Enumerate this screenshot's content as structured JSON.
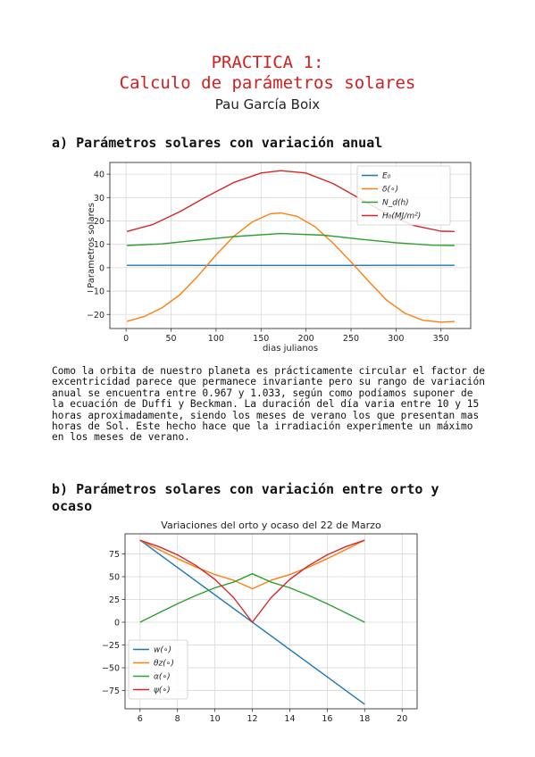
{
  "header": {
    "title_line1": "PRACTICA 1:",
    "title_line2": "Calculo de parámetros solares",
    "author": "Pau García Boix"
  },
  "sections": {
    "a_heading": "a) Parámetros solares con variación anual",
    "a_paragraph": "Como la orbita de nuestro planeta es prácticamente circular el factor de excentricidad parece que permanece invariante pero su rango de variación anual se encuentra entre 0.967 y 1.033, según como podíamos suponer de la ecuación de Duffi y Beckman. La duración del día varia entre 10 y 15 horas aproximadamente, siendo los meses de verano los que presentan mas horas de Sol. Este hecho hace que la irradiación experimente un máximo en los meses de verano.",
    "b_heading": "b) Parámetros solares con variación entre orto y ocaso"
  },
  "colors": {
    "title": "#d11f1f",
    "blue": "#1f77b4",
    "orange": "#ff7f0e",
    "green": "#2ca02c",
    "red": "#d62728"
  },
  "chart_data": [
    {
      "type": "line",
      "title": "",
      "xlabel": "dias julianos",
      "ylabel": "Parametros solares",
      "xlim": [
        -18,
        383
      ],
      "ylim": [
        -26,
        45
      ],
      "xticks": [
        "0",
        "50",
        "100",
        "150",
        "200",
        "250",
        "300",
        "350"
      ],
      "yticks": [
        "−20",
        "−10",
        "0",
        "10",
        "20",
        "30",
        "40"
      ],
      "grid": true,
      "legend": "top-right",
      "series": [
        {
          "name": "E₀",
          "color": "#1f77b4",
          "x": [
            1,
            50,
            100,
            172,
            250,
            300,
            365
          ],
          "y": [
            1.03,
            1.02,
            1.0,
            0.97,
            0.99,
            1.01,
            1.03
          ]
        },
        {
          "name": "δ(∘)",
          "color": "#ff7f0e",
          "x": [
            1,
            20,
            40,
            60,
            80,
            100,
            120,
            140,
            160,
            172,
            190,
            210,
            230,
            250,
            270,
            290,
            310,
            330,
            350,
            365
          ],
          "y": [
            -23,
            -20.9,
            -17.2,
            -11.5,
            -3.5,
            5.5,
            13.5,
            19.5,
            23.0,
            23.45,
            22.0,
            17.5,
            10.5,
            2.5,
            -6.0,
            -14.0,
            -19.5,
            -22.5,
            -23.3,
            -23.0
          ]
        },
        {
          "name": "N_d(h)",
          "color": "#2ca02c",
          "x": [
            1,
            40,
            80,
            120,
            172,
            220,
            260,
            300,
            340,
            365
          ],
          "y": [
            9.5,
            10.2,
            11.8,
            13.3,
            14.6,
            13.9,
            12.2,
            10.7,
            9.6,
            9.5
          ]
        },
        {
          "name": "H₀(MJ/m²)",
          "color": "#d62728",
          "x": [
            1,
            30,
            60,
            90,
            120,
            150,
            172,
            200,
            230,
            260,
            290,
            320,
            350,
            365
          ],
          "y": [
            15.5,
            18.5,
            24.0,
            30.5,
            36.5,
            40.5,
            41.5,
            40.5,
            36.0,
            29.5,
            23.0,
            18.0,
            15.6,
            15.5
          ]
        }
      ]
    },
    {
      "type": "line",
      "title": "Variaciones del orto y ocaso del 22 de Marzo",
      "xlabel": "",
      "ylabel": "",
      "xlim": [
        5.2,
        20.8
      ],
      "ylim": [
        -95,
        97
      ],
      "xticks": [
        "6",
        "8",
        "10",
        "12",
        "14",
        "16",
        "18",
        "20"
      ],
      "yticks": [
        "75",
        "50",
        "25",
        "0",
        "−25",
        "−50",
        "−75"
      ],
      "grid": true,
      "legend": "bottom-left",
      "series": [
        {
          "name": "w(∘)",
          "color": "#1f77b4",
          "x": [
            6,
            18
          ],
          "y": [
            90,
            -90
          ]
        },
        {
          "name": "θz(∘)",
          "color": "#ff7f0e",
          "x": [
            6,
            7,
            8,
            9,
            10,
            11,
            12,
            13,
            14,
            15,
            16,
            17,
            18
          ],
          "y": [
            90,
            79.8,
            69.8,
            60.5,
            52.3,
            46.0,
            36.8,
            46.0,
            52.3,
            60.5,
            69.8,
            79.8,
            90
          ]
        },
        {
          "name": "α(∘)",
          "color": "#2ca02c",
          "x": [
            6,
            7,
            8,
            9,
            10,
            11,
            12,
            13,
            14,
            15,
            16,
            17,
            18
          ],
          "y": [
            0,
            10.2,
            20.2,
            29.5,
            37.7,
            44.0,
            53.2,
            44.0,
            37.7,
            29.5,
            20.2,
            10.2,
            0
          ]
        },
        {
          "name": "ψ(∘)",
          "color": "#d62728",
          "x": [
            6,
            7,
            8,
            9,
            10,
            11,
            12,
            13,
            14,
            15,
            16,
            17,
            18
          ],
          "y": [
            90,
            83,
            74,
            62,
            47,
            27,
            0,
            27,
            47,
            62,
            74,
            83,
            90
          ]
        }
      ]
    }
  ]
}
